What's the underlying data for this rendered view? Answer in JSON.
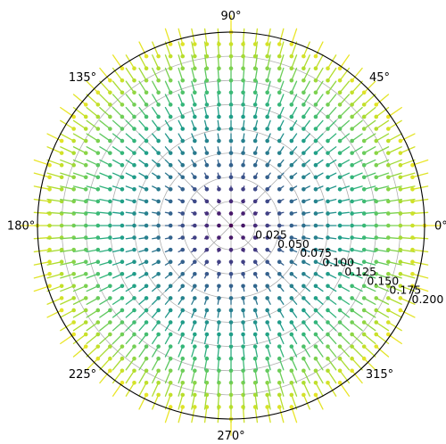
{
  "chart_data": {
    "type": "polar-quiver",
    "projection": "polar",
    "grid": true,
    "colormap": "viridis",
    "colors": {
      "grid": "#b0b0b0",
      "frame": "#000000",
      "low": "#440154",
      "high": "#d8e219"
    },
    "angular_ticks": [
      {
        "angle": 0,
        "label": "0°"
      },
      {
        "angle": 45,
        "label": "45°"
      },
      {
        "angle": 90,
        "label": "90°"
      },
      {
        "angle": 135,
        "label": "135°"
      },
      {
        "angle": 180,
        "label": "180°"
      },
      {
        "angle": 225,
        "label": "225°"
      },
      {
        "angle": 270,
        "label": "270°"
      },
      {
        "angle": 315,
        "label": "315°"
      }
    ],
    "radial_ticks": [
      {
        "value": 0.025,
        "label": "0.025"
      },
      {
        "value": 0.05,
        "label": "0.050"
      },
      {
        "value": 0.075,
        "label": "0.075"
      },
      {
        "value": 0.1,
        "label": "0.100"
      },
      {
        "value": 0.125,
        "label": "0.125"
      },
      {
        "value": 0.15,
        "label": "0.150"
      },
      {
        "value": 0.175,
        "label": "0.175"
      },
      {
        "value": 0.2,
        "label": "0.200"
      }
    ],
    "rlim": [
      0,
      0.2
    ],
    "radial_label_angle_deg": 337.5,
    "field": {
      "grid_x_range": [
        -0.2,
        0.2
      ],
      "grid_y_range": [
        -0.2,
        0.2
      ],
      "grid_step": 0.0125,
      "vector": "u = -x, v = -y (arrows point toward the centre, length and colour grow with radius)"
    }
  }
}
